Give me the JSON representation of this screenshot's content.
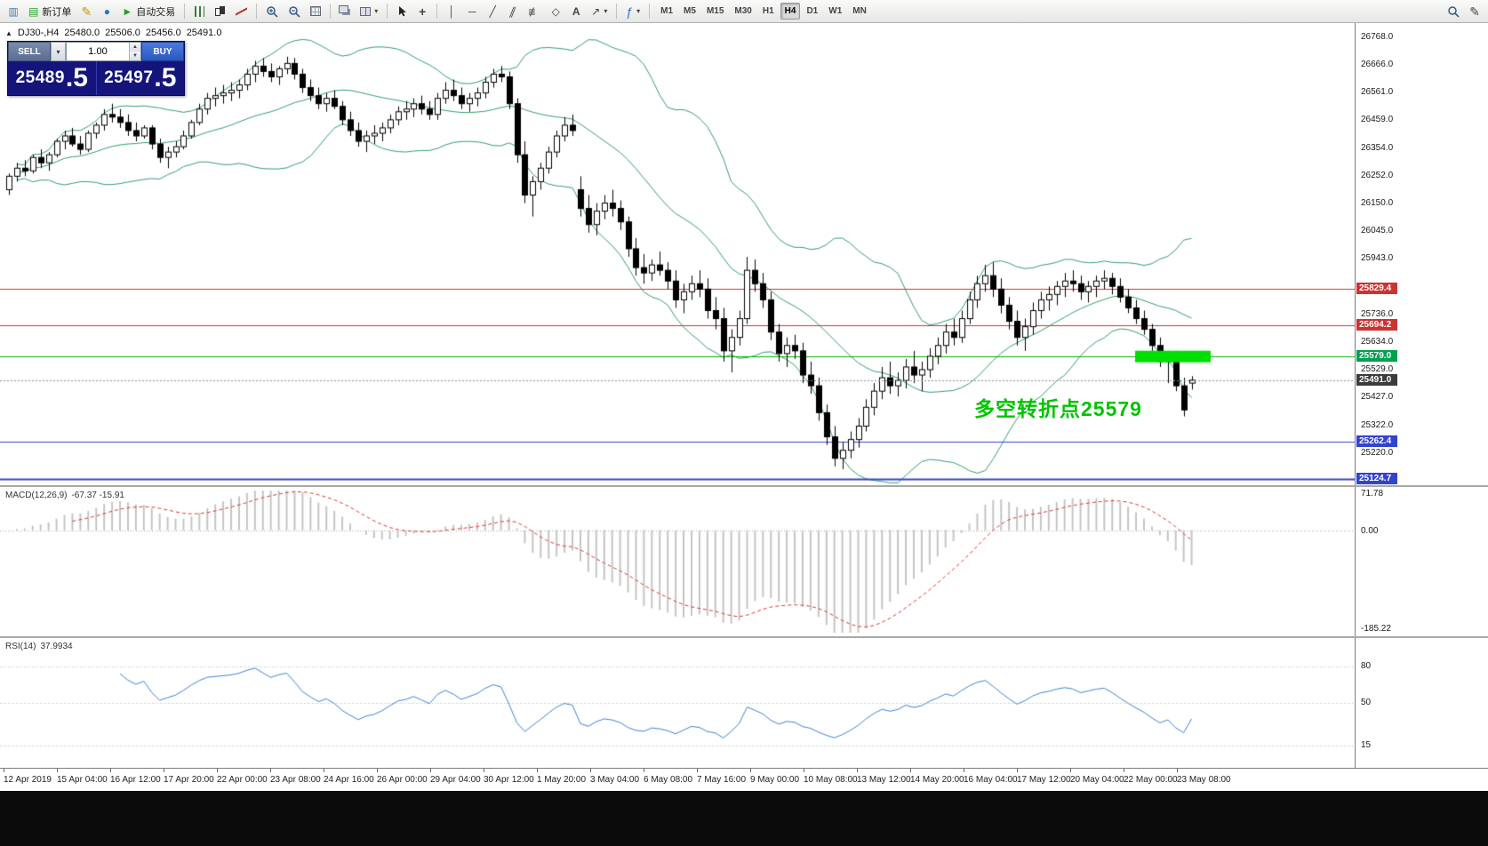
{
  "toolbar": {
    "new_order_label": "新订单",
    "auto_trading_label": "自动交易",
    "timeframes": [
      "M1",
      "M5",
      "M15",
      "M30",
      "H1",
      "H4",
      "D1",
      "W1",
      "MN"
    ],
    "active_timeframe": "H4"
  },
  "icons": {
    "terminal": "▥",
    "doc": "▤",
    "editor": "✎",
    "options": "●",
    "play": "►",
    "dropdown": "▾",
    "up": "▲",
    "down": "▼",
    "crosshair": "+",
    "vline": "│",
    "hline": "─",
    "trendline": "╱",
    "channel": "∥",
    "fibonacci": "≢",
    "ellipse": "◇",
    "text_tool": "A",
    "arrows_tool": "↗",
    "indicators": "ƒ"
  },
  "trade_panel": {
    "sell_label": "SELL",
    "buy_label": "BUY",
    "volume": "1.00",
    "sell_price_main": "25489",
    "sell_price_pip": ".5",
    "buy_price_main": "25497",
    "buy_price_pip": ".5"
  },
  "chart_header": {
    "symbol": "DJ30-,H4",
    "open": "25480.0",
    "high": "25506.0",
    "low": "25456.0",
    "close": "25491.0"
  },
  "annotation": {
    "text": "多空转折点25579",
    "color": "#00c400"
  },
  "macd_panel": {
    "label": "MACD(12,26,9)",
    "values": "-67.37 -15.91",
    "axis_labels": [
      "71.78",
      "0.00",
      "-185.22"
    ]
  },
  "rsi_panel": {
    "label": "RSI(14)",
    "value": "37.9934",
    "axis_labels": [
      "80",
      "50",
      "15"
    ]
  },
  "price_axis": {
    "ticks": [
      "26768.0",
      "26666.0",
      "26561.0",
      "26459.0",
      "26354.0",
      "26252.0",
      "26150.0",
      "26045.0",
      "25943.0",
      "25736.0",
      "25634.0",
      "25529.0",
      "25427.0",
      "25322.0",
      "25220.0"
    ],
    "tags": [
      {
        "value": "25829.4",
        "color": "#cc3333"
      },
      {
        "value": "25694.2",
        "color": "#cc3333"
      },
      {
        "value": "25579.0",
        "color": "#00a050"
      },
      {
        "value": "25491.0",
        "color": "#3c3c3c"
      },
      {
        "value": "25262.4",
        "color": "#3344cc"
      },
      {
        "value": "25124.7",
        "color": "#3344cc"
      }
    ]
  },
  "time_axis": {
    "labels": [
      "12 Apr 2019",
      "15 Apr 04:00",
      "16 Apr 12:00",
      "17 Apr 20:00",
      "22 Apr 00:00",
      "23 Apr 08:00",
      "24 Apr 16:00",
      "26 Apr 00:00",
      "29 Apr 04:00",
      "30 Apr 12:00",
      "1 May 20:00",
      "3 May 04:00",
      "6 May 08:00",
      "7 May 16:00",
      "9 May 00:00",
      "10 May 08:00",
      "13 May 12:00",
      "14 May 20:00",
      "16 May 04:00",
      "17 May 12:00",
      "20 May 04:00",
      "22 May 00:00",
      "23 May 08:00"
    ]
  },
  "chart_data": {
    "type": "candlestick",
    "symbol": "DJ30-",
    "timeframe": "H4",
    "y_range": [
      25100,
      26820
    ],
    "bollinger": {
      "period": 20,
      "deviation": 2,
      "color": "#2f9e68"
    },
    "horizontal_lines": [
      {
        "price": 25829.4,
        "color": "#cc3333",
        "width": 1
      },
      {
        "price": 25694.2,
        "color": "#cc3333",
        "width": 1
      },
      {
        "price": 25579.0,
        "color": "#00b200",
        "width": 1
      },
      {
        "price": 25262.4,
        "color": "#3344cc",
        "width": 1
      },
      {
        "price": 25124.7,
        "color": "#3344cc",
        "width": 2
      }
    ],
    "current_price": {
      "value": 25491.0,
      "line_color": "#8a8a8a"
    },
    "highlight_rect": {
      "price": 25579,
      "x": 1277,
      "width": 85,
      "height": 13,
      "color": "#00dd00"
    },
    "macd": {
      "fast": 12,
      "slow": 26,
      "signal": 9,
      "histogram_color": "#c4c4c4",
      "signal_color": "#dd3333",
      "axis_max": 71.78,
      "axis_min": -185.22
    },
    "rsi": {
      "period": 14,
      "color": "#3e7fd4",
      "levels": [
        80,
        50,
        15
      ]
    },
    "candles": [
      [
        26200,
        26260,
        26180,
        26250
      ],
      [
        26250,
        26300,
        26230,
        26280
      ],
      [
        26280,
        26310,
        26250,
        26270
      ],
      [
        26270,
        26330,
        26260,
        26320
      ],
      [
        26320,
        26350,
        26280,
        26300
      ],
      [
        26300,
        26340,
        26270,
        26330
      ],
      [
        26330,
        26390,
        26320,
        26380
      ],
      [
        26380,
        26420,
        26350,
        26400
      ],
      [
        26400,
        26430,
        26360,
        26370
      ],
      [
        26370,
        26400,
        26330,
        26350
      ],
      [
        26350,
        26420,
        26340,
        26410
      ],
      [
        26410,
        26450,
        26390,
        26440
      ],
      [
        26440,
        26500,
        26420,
        26480
      ],
      [
        26480,
        26520,
        26450,
        26470
      ],
      [
        26470,
        26500,
        26430,
        26450
      ],
      [
        26450,
        26480,
        26400,
        26420
      ],
      [
        26420,
        26450,
        26380,
        26400
      ],
      [
        26400,
        26440,
        26390,
        26430
      ],
      [
        26430,
        26440,
        26350,
        26370
      ],
      [
        26370,
        26390,
        26300,
        26320
      ],
      [
        26320,
        26360,
        26280,
        26340
      ],
      [
        26340,
        26380,
        26320,
        26360
      ],
      [
        26360,
        26420,
        26350,
        26400
      ],
      [
        26400,
        26460,
        26390,
        26450
      ],
      [
        26450,
        26520,
        26440,
        26500
      ],
      [
        26500,
        26560,
        26480,
        26540
      ],
      [
        26540,
        26580,
        26510,
        26550
      ],
      [
        26550,
        26590,
        26520,
        26560
      ],
      [
        26560,
        26600,
        26530,
        26570
      ],
      [
        26570,
        26610,
        26540,
        26590
      ],
      [
        26590,
        26650,
        26570,
        26630
      ],
      [
        26630,
        26680,
        26600,
        26660
      ],
      [
        26660,
        26690,
        26620,
        26640
      ],
      [
        26640,
        26670,
        26600,
        26620
      ],
      [
        26620,
        26660,
        26590,
        26650
      ],
      [
        26650,
        26695,
        26630,
        26670
      ],
      [
        26670,
        26690,
        26610,
        26630
      ],
      [
        26630,
        26650,
        26560,
        26580
      ],
      [
        26580,
        26610,
        26530,
        26550
      ],
      [
        26550,
        26580,
        26500,
        26520
      ],
      [
        26520,
        26560,
        26490,
        26540
      ],
      [
        26540,
        26570,
        26500,
        26510
      ],
      [
        26510,
        26530,
        26440,
        26460
      ],
      [
        26460,
        26490,
        26400,
        26420
      ],
      [
        26420,
        26450,
        26360,
        26380
      ],
      [
        26380,
        26420,
        26340,
        26400
      ],
      [
        26400,
        26440,
        26370,
        26410
      ],
      [
        26410,
        26450,
        26380,
        26430
      ],
      [
        26430,
        26480,
        26410,
        26460
      ],
      [
        26460,
        26510,
        26440,
        26490
      ],
      [
        26490,
        26530,
        26460,
        26500
      ],
      [
        26500,
        26540,
        26470,
        26520
      ],
      [
        26520,
        26550,
        26480,
        26500
      ],
      [
        26500,
        26530,
        26460,
        26480
      ],
      [
        26480,
        26560,
        26460,
        26540
      ],
      [
        26540,
        26600,
        26520,
        26570
      ],
      [
        26570,
        26610,
        26530,
        26550
      ],
      [
        26550,
        26580,
        26500,
        26520
      ],
      [
        26520,
        26560,
        26490,
        26540
      ],
      [
        26540,
        26580,
        26510,
        26560
      ],
      [
        26560,
        26620,
        26540,
        26600
      ],
      [
        26600,
        26650,
        26580,
        26630
      ],
      [
        26630,
        26660,
        26600,
        26620
      ],
      [
        26620,
        26640,
        26500,
        26520
      ],
      [
        26520,
        26540,
        26300,
        26330
      ],
      [
        26330,
        26380,
        26150,
        26180
      ],
      [
        26180,
        26250,
        26100,
        26230
      ],
      [
        26230,
        26300,
        26200,
        26280
      ],
      [
        26280,
        26360,
        26260,
        26340
      ],
      [
        26340,
        26420,
        26320,
        26400
      ],
      [
        26400,
        26470,
        26380,
        26440
      ],
      [
        26440,
        26480,
        26400,
        26420
      ],
      [
        26200,
        26250,
        26100,
        26130
      ],
      [
        26130,
        26180,
        26040,
        26070
      ],
      [
        26070,
        26150,
        26030,
        26120
      ],
      [
        26120,
        26180,
        26090,
        26150
      ],
      [
        26150,
        26200,
        26100,
        26130
      ],
      [
        26130,
        26160,
        26050,
        26080
      ],
      [
        26080,
        26100,
        25950,
        25980
      ],
      [
        25980,
        26020,
        25880,
        25910
      ],
      [
        25910,
        25960,
        25850,
        25890
      ],
      [
        25890,
        25940,
        25860,
        25920
      ],
      [
        25920,
        25970,
        25880,
        25900
      ],
      [
        25900,
        25930,
        25830,
        25860
      ],
      [
        25860,
        25900,
        25760,
        25790
      ],
      [
        25790,
        25850,
        25740,
        25820
      ],
      [
        25820,
        25880,
        25790,
        25850
      ],
      [
        25850,
        25900,
        25800,
        25830
      ],
      [
        25830,
        25870,
        25720,
        25750
      ],
      [
        25750,
        25800,
        25680,
        25720
      ],
      [
        25720,
        25760,
        25560,
        25600
      ],
      [
        25600,
        25680,
        25520,
        25650
      ],
      [
        25650,
        25750,
        25620,
        25720
      ],
      [
        25720,
        25950,
        25700,
        25900
      ],
      [
        25900,
        25940,
        25820,
        25850
      ],
      [
        25850,
        25890,
        25760,
        25790
      ],
      [
        25790,
        25820,
        25640,
        25670
      ],
      [
        25670,
        25700,
        25560,
        25590
      ],
      [
        25590,
        25650,
        25540,
        25620
      ],
      [
        25620,
        25660,
        25570,
        25600
      ],
      [
        25600,
        25630,
        25480,
        25510
      ],
      [
        25510,
        25560,
        25440,
        25470
      ],
      [
        25470,
        25500,
        25340,
        25370
      ],
      [
        25370,
        25400,
        25250,
        25280
      ],
      [
        25280,
        25320,
        25170,
        25200
      ],
      [
        25200,
        25260,
        25160,
        25230
      ],
      [
        25230,
        25300,
        25200,
        25270
      ],
      [
        25270,
        25350,
        25240,
        25320
      ],
      [
        25320,
        25420,
        25300,
        25390
      ],
      [
        25390,
        25480,
        25360,
        25450
      ],
      [
        25450,
        25540,
        25420,
        25500
      ],
      [
        25500,
        25560,
        25440,
        25470
      ],
      [
        25470,
        25520,
        25430,
        25490
      ],
      [
        25490,
        25570,
        25460,
        25540
      ],
      [
        25540,
        25600,
        25480,
        25510
      ],
      [
        25510,
        25560,
        25450,
        25530
      ],
      [
        25530,
        25610,
        25500,
        25580
      ],
      [
        25580,
        25650,
        25550,
        25620
      ],
      [
        25620,
        25700,
        25590,
        25670
      ],
      [
        25670,
        25720,
        25620,
        25650
      ],
      [
        25650,
        25750,
        25630,
        25720
      ],
      [
        25720,
        25820,
        25700,
        25790
      ],
      [
        25790,
        25880,
        25760,
        25850
      ],
      [
        25850,
        25920,
        25820,
        25880
      ],
      [
        25880,
        25930,
        25800,
        25830
      ],
      [
        25830,
        25870,
        25740,
        25770
      ],
      [
        25770,
        25800,
        25680,
        25710
      ],
      [
        25710,
        25750,
        25620,
        25650
      ],
      [
        25650,
        25720,
        25600,
        25690
      ],
      [
        25690,
        25780,
        25660,
        25750
      ],
      [
        25750,
        25820,
        25720,
        25790
      ],
      [
        25790,
        25840,
        25750,
        25810
      ],
      [
        25810,
        25860,
        25770,
        25840
      ],
      [
        25840,
        25890,
        25800,
        25860
      ],
      [
        25860,
        25900,
        25820,
        25850
      ],
      [
        25850,
        25880,
        25790,
        25820
      ],
      [
        25820,
        25860,
        25780,
        25840
      ],
      [
        25840,
        25880,
        25800,
        25860
      ],
      [
        25860,
        25900,
        25830,
        25870
      ],
      [
        25870,
        25890,
        25810,
        25840
      ],
      [
        25840,
        25870,
        25780,
        25800
      ],
      [
        25800,
        25830,
        25740,
        25760
      ],
      [
        25760,
        25790,
        25700,
        25720
      ],
      [
        25720,
        25750,
        25660,
        25680
      ],
      [
        25680,
        25700,
        25600,
        25620
      ],
      [
        25620,
        25650,
        25540,
        25560
      ],
      [
        25560,
        25600,
        25480,
        25580
      ],
      [
        25580,
        25600,
        25450,
        25470
      ],
      [
        25470,
        25500,
        25356,
        25380
      ],
      [
        25480,
        25506,
        25456,
        25491
      ]
    ]
  }
}
